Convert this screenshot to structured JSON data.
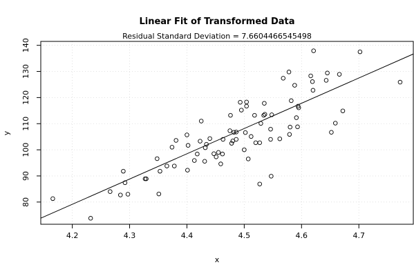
{
  "chart_data": {
    "type": "scatter",
    "title": "Linear Fit of Transformed Data",
    "subtitle": "Residual Standard Deviation =  7.6604466545498",
    "xlabel": "x",
    "ylabel": "y",
    "xlim": [
      4.145,
      4.795
    ],
    "ylim": [
      71.5,
      141.5
    ],
    "xticks": [
      4.2,
      4.3,
      4.4,
      4.5,
      4.6,
      4.7
    ],
    "xtick_labels": [
      "4.2",
      "4.3",
      "4.4",
      "4.5",
      "4.6",
      "4.7"
    ],
    "yticks": [
      80,
      90,
      100,
      110,
      120,
      130,
      140
    ],
    "ytick_labels": [
      "80",
      "90",
      "100",
      "110",
      "120",
      "130",
      "140"
    ],
    "grid": true,
    "fit_line": {
      "intercept": -327.0,
      "slope": 96.7
    },
    "points": [
      {
        "x": 4.166,
        "y": 81.3
      },
      {
        "x": 4.232,
        "y": 73.8
      },
      {
        "x": 4.266,
        "y": 84.0
      },
      {
        "x": 4.284,
        "y": 82.7
      },
      {
        "x": 4.289,
        "y": 91.8
      },
      {
        "x": 4.292,
        "y": 87.4
      },
      {
        "x": 4.297,
        "y": 83.0
      },
      {
        "x": 4.327,
        "y": 88.9
      },
      {
        "x": 4.329,
        "y": 88.9
      },
      {
        "x": 4.348,
        "y": 96.6
      },
      {
        "x": 4.351,
        "y": 83.1
      },
      {
        "x": 4.353,
        "y": 91.8
      },
      {
        "x": 4.365,
        "y": 93.8
      },
      {
        "x": 4.374,
        "y": 101.0
      },
      {
        "x": 4.378,
        "y": 93.8
      },
      {
        "x": 4.381,
        "y": 103.6
      },
      {
        "x": 4.4,
        "y": 105.7
      },
      {
        "x": 4.401,
        "y": 92.2
      },
      {
        "x": 4.402,
        "y": 101.7
      },
      {
        "x": 4.413,
        "y": 95.9
      },
      {
        "x": 4.418,
        "y": 98.4
      },
      {
        "x": 4.423,
        "y": 103.3
      },
      {
        "x": 4.425,
        "y": 111.0
      },
      {
        "x": 4.431,
        "y": 95.6
      },
      {
        "x": 4.432,
        "y": 100.8
      },
      {
        "x": 4.434,
        "y": 102.1
      },
      {
        "x": 4.44,
        "y": 104.3
      },
      {
        "x": 4.447,
        "y": 98.5
      },
      {
        "x": 4.451,
        "y": 97.3
      },
      {
        "x": 4.455,
        "y": 99.0
      },
      {
        "x": 4.459,
        "y": 94.6
      },
      {
        "x": 4.462,
        "y": 98.4
      },
      {
        "x": 4.463,
        "y": 104.0
      },
      {
        "x": 4.475,
        "y": 107.3
      },
      {
        "x": 4.476,
        "y": 113.2
      },
      {
        "x": 4.478,
        "y": 102.5
      },
      {
        "x": 4.48,
        "y": 103.4
      },
      {
        "x": 4.482,
        "y": 106.7
      },
      {
        "x": 4.486,
        "y": 104.0
      },
      {
        "x": 4.486,
        "y": 106.8
      },
      {
        "x": 4.493,
        "y": 118.2
      },
      {
        "x": 4.495,
        "y": 115.2
      },
      {
        "x": 4.5,
        "y": 100.0
      },
      {
        "x": 4.502,
        "y": 106.6
      },
      {
        "x": 4.504,
        "y": 118.3
      },
      {
        "x": 4.504,
        "y": 116.7
      },
      {
        "x": 4.507,
        "y": 96.5
      },
      {
        "x": 4.512,
        "y": 105.1
      },
      {
        "x": 4.518,
        "y": 113.2
      },
      {
        "x": 4.52,
        "y": 102.7
      },
      {
        "x": 4.527,
        "y": 102.7
      },
      {
        "x": 4.527,
        "y": 86.9
      },
      {
        "x": 4.529,
        "y": 110.1
      },
      {
        "x": 4.534,
        "y": 113.2
      },
      {
        "x": 4.536,
        "y": 113.6
      },
      {
        "x": 4.535,
        "y": 117.8
      },
      {
        "x": 4.546,
        "y": 104.0
      },
      {
        "x": 4.546,
        "y": 107.9
      },
      {
        "x": 4.547,
        "y": 89.9
      },
      {
        "x": 4.548,
        "y": 113.4
      },
      {
        "x": 4.562,
        "y": 104.2
      },
      {
        "x": 4.568,
        "y": 127.4
      },
      {
        "x": 4.578,
        "y": 129.8
      },
      {
        "x": 4.579,
        "y": 105.9
      },
      {
        "x": 4.58,
        "y": 108.7
      },
      {
        "x": 4.582,
        "y": 118.8
      },
      {
        "x": 4.588,
        "y": 124.7
      },
      {
        "x": 4.591,
        "y": 112.3
      },
      {
        "x": 4.593,
        "y": 108.8
      },
      {
        "x": 4.594,
        "y": 116.7
      },
      {
        "x": 4.595,
        "y": 116.1
      },
      {
        "x": 4.616,
        "y": 128.3
      },
      {
        "x": 4.619,
        "y": 126.1
      },
      {
        "x": 4.62,
        "y": 122.8
      },
      {
        "x": 4.621,
        "y": 137.9
      },
      {
        "x": 4.643,
        "y": 126.6
      },
      {
        "x": 4.645,
        "y": 129.4
      },
      {
        "x": 4.652,
        "y": 106.7
      },
      {
        "x": 4.659,
        "y": 110.2
      },
      {
        "x": 4.666,
        "y": 128.9
      },
      {
        "x": 4.672,
        "y": 114.9
      },
      {
        "x": 4.702,
        "y": 137.5
      },
      {
        "x": 4.772,
        "y": 125.9
      }
    ]
  }
}
